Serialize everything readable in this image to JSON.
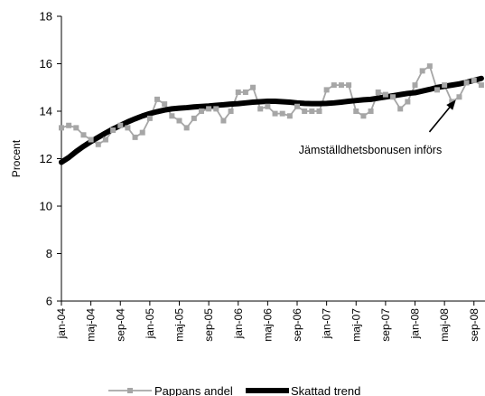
{
  "chart_data": {
    "type": "line",
    "ylabel": "Procent",
    "ylim": [
      6,
      18
    ],
    "yticks": [
      6,
      8,
      10,
      12,
      14,
      16,
      18
    ],
    "x_start": "2004-01",
    "x_end": "2008-11",
    "xtick_labels": [
      "jan-04",
      "maj-04",
      "sep-04",
      "jan-05",
      "maj-05",
      "sep-05",
      "jan-06",
      "maj-06",
      "sep-06",
      "jan-07",
      "maj-07",
      "sep-07",
      "jan-08",
      "maj-08",
      "sep-08"
    ],
    "grid": false,
    "legend_position": "bottom",
    "series": [
      {
        "name": "Pappans andel",
        "color": "#a6a6a6",
        "marker": "square",
        "values": [
          13.3,
          13.4,
          13.3,
          13.0,
          12.8,
          12.6,
          12.8,
          13.2,
          13.4,
          13.3,
          12.9,
          13.1,
          13.7,
          14.5,
          14.3,
          13.8,
          13.6,
          13.3,
          13.7,
          14.0,
          14.1,
          14.1,
          13.6,
          14.0,
          14.8,
          14.8,
          15.0,
          14.1,
          14.2,
          13.9,
          13.9,
          13.8,
          14.2,
          14.0,
          14.0,
          14.0,
          14.9,
          15.1,
          15.1,
          15.1,
          14.0,
          13.8,
          14.0,
          14.8,
          14.7,
          14.6,
          14.1,
          14.4,
          15.1,
          15.7,
          15.9,
          14.9,
          15.1,
          14.4,
          14.6,
          15.2,
          15.3,
          15.1
        ]
      },
      {
        "name": "Skattad trend",
        "color": "#000000",
        "values": [
          11.85,
          12.05,
          12.3,
          12.52,
          12.72,
          12.9,
          13.08,
          13.25,
          13.4,
          13.55,
          13.68,
          13.8,
          13.9,
          13.98,
          14.05,
          14.1,
          14.13,
          14.15,
          14.18,
          14.2,
          14.22,
          14.25,
          14.27,
          14.3,
          14.32,
          14.35,
          14.38,
          14.4,
          14.42,
          14.42,
          14.4,
          14.38,
          14.35,
          14.33,
          14.32,
          14.32,
          14.33,
          14.35,
          14.38,
          14.42,
          14.45,
          14.48,
          14.5,
          14.55,
          14.6,
          14.65,
          14.7,
          14.75,
          14.78,
          14.85,
          14.92,
          15.0,
          15.05,
          15.1,
          15.15,
          15.22,
          15.3,
          15.38
        ]
      }
    ],
    "annotation": {
      "text": "Jämställdhetsbonusen införs",
      "target_month": "2008-07",
      "target_value": 14.65
    }
  }
}
